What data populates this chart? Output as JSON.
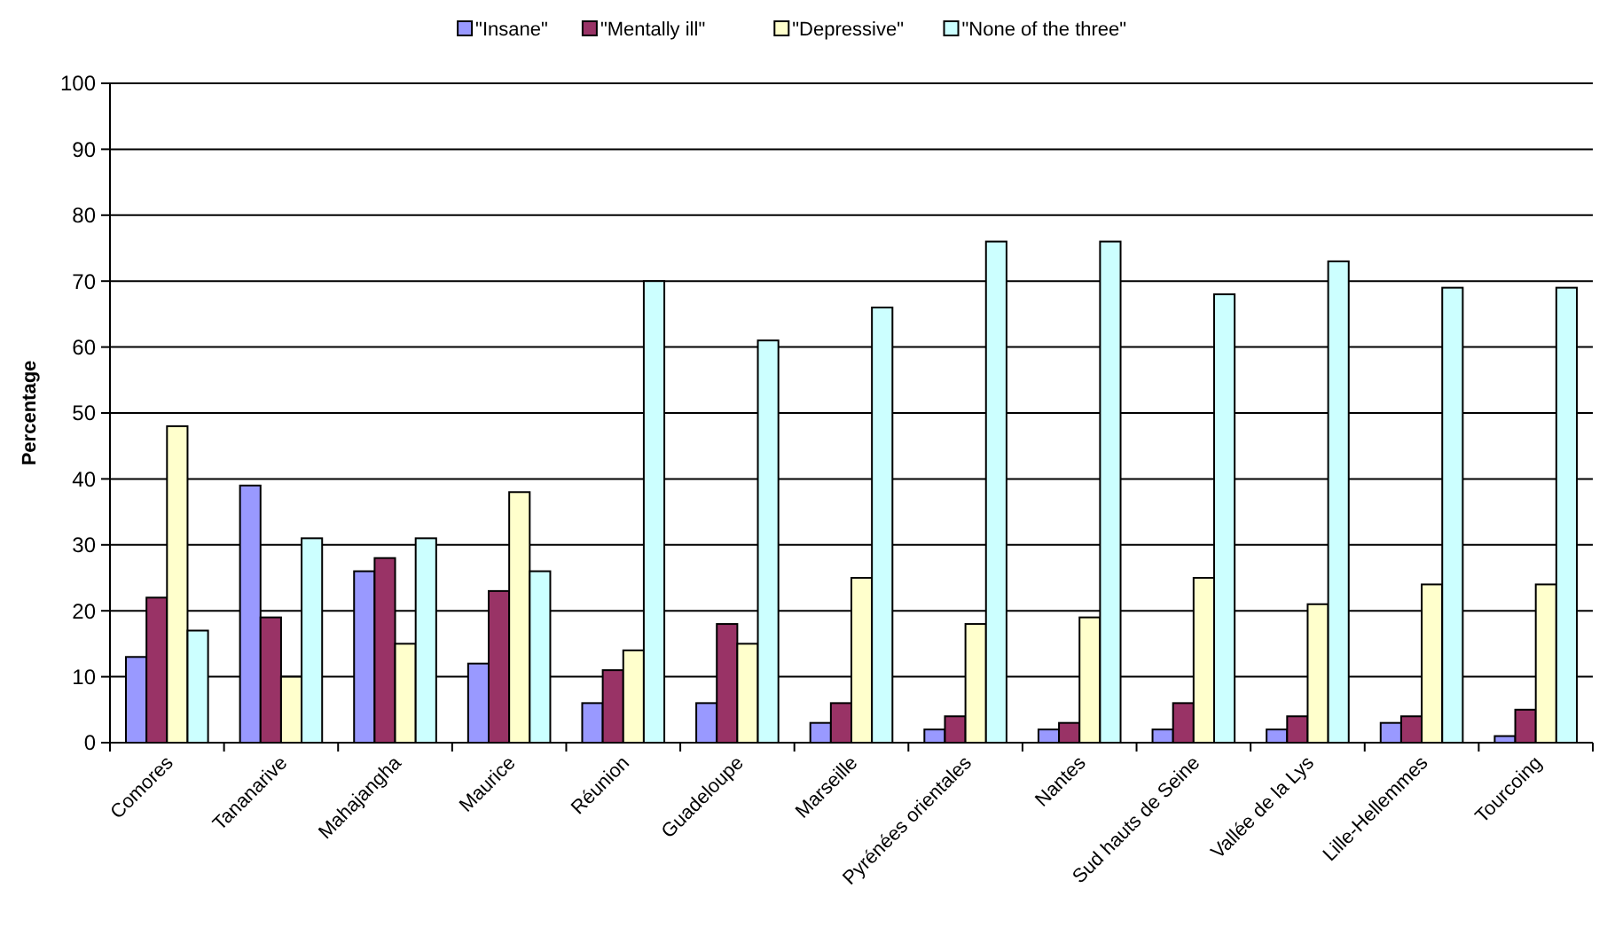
{
  "chart_data": {
    "type": "bar",
    "ylabel": "Percentage",
    "categories": [
      "Comores",
      "Tananarive",
      "Mahajangha",
      "Maurice",
      "Réunion",
      "Guadeloupe",
      "Marseille",
      "Pyrénées orientales",
      "Nantes",
      "Sud hauts de Seine",
      "Vallée de la Lys",
      "Lille-Hellemmes",
      "Tourcoing"
    ],
    "series": [
      {
        "name": "\"Insane\"",
        "color": "#9999ff",
        "values": [
          13,
          39,
          26,
          12,
          6,
          6,
          3,
          2,
          2,
          2,
          2,
          3,
          1
        ]
      },
      {
        "name": "\"Mentally ill\"",
        "color": "#993366",
        "values": [
          22,
          19,
          28,
          23,
          11,
          18,
          6,
          4,
          3,
          6,
          4,
          4,
          5
        ]
      },
      {
        "name": "\"Depressive\"",
        "color": "#ffffcc",
        "values": [
          48,
          10,
          15,
          38,
          14,
          15,
          25,
          18,
          19,
          25,
          21,
          24,
          24
        ]
      },
      {
        "name": "\"None of the three\"",
        "color": "#ccffff",
        "values": [
          17,
          31,
          31,
          26,
          70,
          61,
          66,
          76,
          76,
          68,
          73,
          69,
          69
        ]
      }
    ],
    "ylim": [
      0,
      100
    ],
    "yticks": [
      0,
      10,
      20,
      30,
      40,
      50,
      60,
      70,
      80,
      90,
      100
    ],
    "grid": "y",
    "legend": "top"
  }
}
